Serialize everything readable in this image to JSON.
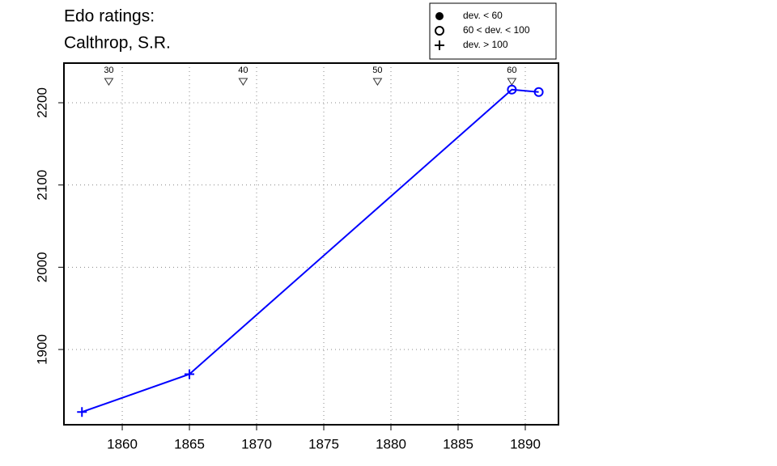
{
  "chart_data": {
    "type": "line",
    "title": "Edo ratings:",
    "subtitle": "Calthrop, S.R.",
    "x": [
      1857,
      1865,
      1889,
      1891
    ],
    "series": [
      {
        "color": "#0000ff",
        "values": [
          1824,
          1870,
          2216,
          2213
        ],
        "markers": [
          "plus",
          "plus",
          "circle",
          "circle"
        ]
      }
    ],
    "xlim": [
      1855.66,
      1892.47
    ],
    "xticks": [
      1860,
      1865,
      1870,
      1875,
      1880,
      1885,
      1890
    ],
    "ylim": [
      1808.5,
      2248.2
    ],
    "yticks": [
      1900,
      2000,
      2100,
      2200
    ],
    "grid": true,
    "annotations": [
      {
        "x": 1859,
        "label": "30"
      },
      {
        "x": 1869,
        "label": "40"
      },
      {
        "x": 1879,
        "label": "50"
      },
      {
        "x": 1889,
        "label": "60"
      }
    ],
    "legend": {
      "position": "top-right",
      "entries": [
        {
          "label": "dev. < 60",
          "marker": "dot"
        },
        {
          "label": "60 < dev. < 100",
          "marker": "circle"
        },
        {
          "label": "dev. > 100",
          "marker": "plus"
        }
      ]
    }
  }
}
